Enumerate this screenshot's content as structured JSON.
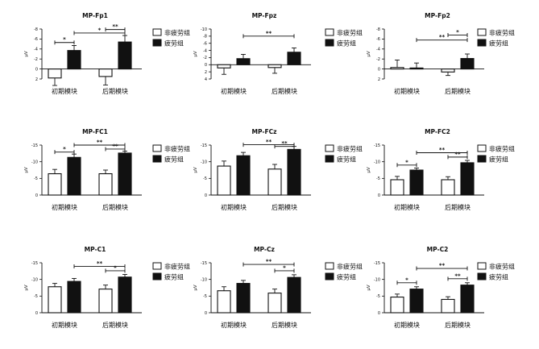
{
  "chart_data": [
    {
      "type": "bar",
      "title": "MP-Fp1",
      "ylabel": "μV",
      "ylim": [
        2,
        -8
      ],
      "yticks": [
        2,
        0,
        -2,
        -4,
        -6,
        -8
      ],
      "categories": [
        "初期模块",
        "后期模块"
      ],
      "series": [
        {
          "name": "非疲劳组",
          "values": [
            1.8,
            1.5
          ],
          "errors": [
            1.5,
            1.7
          ]
        },
        {
          "name": "疲劳组",
          "values": [
            -3.7,
            -5.4
          ],
          "errors": [
            1.0,
            1.3
          ]
        }
      ],
      "annotations": [
        {
          "from": [
            0,
            0
          ],
          "to": [
            0,
            1
          ],
          "label": "*",
          "level": -5.3
        },
        {
          "from": [
            0,
            1
          ],
          "to": [
            1,
            1
          ],
          "label": "*",
          "level": -7.2
        },
        {
          "from": [
            1,
            0
          ],
          "to": [
            1,
            1
          ],
          "label": "**",
          "level": -7.9
        }
      ]
    },
    {
      "type": "bar",
      "title": "MP-Fpz",
      "ylabel": "μV",
      "ylim": [
        4,
        -10
      ],
      "yticks": [
        4,
        2,
        0,
        -2,
        -4,
        -6,
        -8,
        -10
      ],
      "categories": [
        "初期模块",
        "后期模块"
      ],
      "series": [
        {
          "name": "非疲劳组",
          "values": [
            0.9,
            0.8
          ],
          "errors": [
            1.8,
            1.6
          ]
        },
        {
          "name": "疲劳组",
          "values": [
            -1.7,
            -3.5
          ],
          "errors": [
            1.2,
            1.2
          ]
        }
      ],
      "annotations": [
        {
          "from": [
            0,
            1
          ],
          "to": [
            1,
            1
          ],
          "label": "**",
          "level": -8.0
        }
      ]
    },
    {
      "type": "bar",
      "title": "MP-Fp2",
      "ylabel": "μV",
      "ylim": [
        2,
        -8
      ],
      "yticks": [
        2,
        0,
        -2,
        -4,
        -6,
        -8
      ],
      "categories": [
        "初期模块",
        "后期模块"
      ],
      "series": [
        {
          "name": "非疲劳组",
          "values": [
            -0.3,
            0.6
          ],
          "errors": [
            1.5,
            0.7
          ]
        },
        {
          "name": "疲劳组",
          "values": [
            -0.2,
            -2.1
          ],
          "errors": [
            1.0,
            0.9
          ]
        }
      ],
      "annotations": [
        {
          "from": [
            0,
            1
          ],
          "to": [
            1,
            1
          ],
          "label": "**",
          "level": -5.8
        },
        {
          "from": [
            1,
            0
          ],
          "to": [
            1,
            1
          ],
          "label": "*",
          "level": -6.8
        }
      ]
    },
    {
      "type": "bar",
      "title": "MP-FC1",
      "ylabel": "μV",
      "ylim": [
        0,
        -15
      ],
      "yticks": [
        0,
        -5,
        -10,
        -15
      ],
      "categories": [
        "初期模块",
        "后期模块"
      ],
      "series": [
        {
          "name": "非疲劳组",
          "values": [
            -6.4,
            -6.4
          ],
          "errors": [
            1.3,
            1.1
          ]
        },
        {
          "name": "疲劳组",
          "values": [
            -11.3,
            -12.6
          ],
          "errors": [
            1.0,
            0.6
          ]
        }
      ],
      "annotations": [
        {
          "from": [
            0,
            0
          ],
          "to": [
            0,
            1
          ],
          "label": "*",
          "level": -12.9
        },
        {
          "from": [
            0,
            1
          ],
          "to": [
            1,
            1
          ],
          "label": "**",
          "level": -15.0
        },
        {
          "from": [
            1,
            0
          ],
          "to": [
            1,
            1
          ],
          "label": "**",
          "level": -13.8
        }
      ]
    },
    {
      "type": "bar",
      "title": "MP-FCz",
      "ylabel": "μV",
      "ylim": [
        0,
        -15
      ],
      "yticks": [
        0,
        -5,
        -10,
        -15
      ],
      "categories": [
        "初期模块",
        "后期模块"
      ],
      "series": [
        {
          "name": "非疲劳组",
          "values": [
            -8.7,
            -7.8
          ],
          "errors": [
            1.5,
            1.4
          ]
        },
        {
          "name": "疲劳组",
          "values": [
            -11.8,
            -13.7
          ],
          "errors": [
            1.0,
            0.9
          ]
        }
      ],
      "annotations": [
        {
          "from": [
            0,
            1
          ],
          "to": [
            1,
            1
          ],
          "label": "**",
          "level": -15.1
        },
        {
          "from": [
            1,
            0
          ],
          "to": [
            1,
            1
          ],
          "label": "**",
          "level": -14.6
        }
      ]
    },
    {
      "type": "bar",
      "title": "MP-FC2",
      "ylabel": "μV",
      "ylim": [
        0,
        -15
      ],
      "yticks": [
        0,
        -5,
        -10,
        -15
      ],
      "categories": [
        "初期模块",
        "后期模块"
      ],
      "series": [
        {
          "name": "非疲劳组",
          "values": [
            -4.6,
            -4.6
          ],
          "errors": [
            1.0,
            0.9
          ]
        },
        {
          "name": "疲劳组",
          "values": [
            -7.5,
            -9.7
          ],
          "errors": [
            0.6,
            0.7
          ]
        }
      ],
      "annotations": [
        {
          "from": [
            0,
            0
          ],
          "to": [
            0,
            1
          ],
          "label": "*",
          "level": -9.0
        },
        {
          "from": [
            0,
            1
          ],
          "to": [
            1,
            1
          ],
          "label": "**",
          "level": -12.7
        },
        {
          "from": [
            1,
            0
          ],
          "to": [
            1,
            1
          ],
          "label": "**",
          "level": -11.4
        }
      ]
    },
    {
      "type": "bar",
      "title": "MP-C1",
      "ylabel": "μV",
      "ylim": [
        0,
        -15
      ],
      "yticks": [
        0,
        -5,
        -10,
        -15
      ],
      "categories": [
        "初期模块",
        "后期模块"
      ],
      "series": [
        {
          "name": "非疲劳组",
          "values": [
            -7.8,
            -7.1
          ],
          "errors": [
            1.0,
            1.2
          ]
        },
        {
          "name": "疲劳组",
          "values": [
            -9.4,
            -10.7
          ],
          "errors": [
            0.9,
            0.8
          ]
        }
      ],
      "annotations": [
        {
          "from": [
            0,
            1
          ],
          "to": [
            1,
            1
          ],
          "label": "**",
          "level": -13.9
        },
        {
          "from": [
            1,
            0
          ],
          "to": [
            1,
            1
          ],
          "label": "*",
          "level": -12.6
        }
      ]
    },
    {
      "type": "bar",
      "title": "MP-Cz",
      "ylabel": "μV",
      "ylim": [
        0,
        -15
      ],
      "yticks": [
        0,
        -5,
        -10,
        -15
      ],
      "categories": [
        "初期模块",
        "后期模块"
      ],
      "series": [
        {
          "name": "非疲劳组",
          "values": [
            -6.6,
            -5.9
          ],
          "errors": [
            1.2,
            1.2
          ]
        },
        {
          "name": "疲劳组",
          "values": [
            -8.8,
            -10.6
          ],
          "errors": [
            0.9,
            0.8
          ]
        }
      ],
      "annotations": [
        {
          "from": [
            0,
            1
          ],
          "to": [
            1,
            1
          ],
          "label": "**",
          "level": -14.5
        },
        {
          "from": [
            1,
            0
          ],
          "to": [
            1,
            1
          ],
          "label": "*",
          "level": -12.6
        }
      ]
    },
    {
      "type": "bar",
      "title": "MP-C2",
      "ylabel": "μV",
      "ylim": [
        0,
        -15
      ],
      "yticks": [
        0,
        -5,
        -10,
        -15
      ],
      "categories": [
        "初期模块",
        "后期模块"
      ],
      "series": [
        {
          "name": "非疲劳组",
          "values": [
            -4.7,
            -4.0
          ],
          "errors": [
            0.9,
            0.8
          ]
        },
        {
          "name": "疲劳组",
          "values": [
            -7.1,
            -8.3
          ],
          "errors": [
            0.7,
            0.7
          ]
        }
      ],
      "annotations": [
        {
          "from": [
            0,
            0
          ],
          "to": [
            0,
            1
          ],
          "label": "*",
          "level": -9.0
        },
        {
          "from": [
            0,
            1
          ],
          "to": [
            1,
            1
          ],
          "label": "**",
          "level": -13.3
        },
        {
          "from": [
            1,
            0
          ],
          "to": [
            1,
            1
          ],
          "label": "**",
          "level": -10.2
        }
      ]
    }
  ],
  "legend": {
    "items": [
      {
        "label": "非疲劳组",
        "fill": "#ffffff"
      },
      {
        "label": "疲劳组",
        "fill": "#111111"
      }
    ]
  }
}
